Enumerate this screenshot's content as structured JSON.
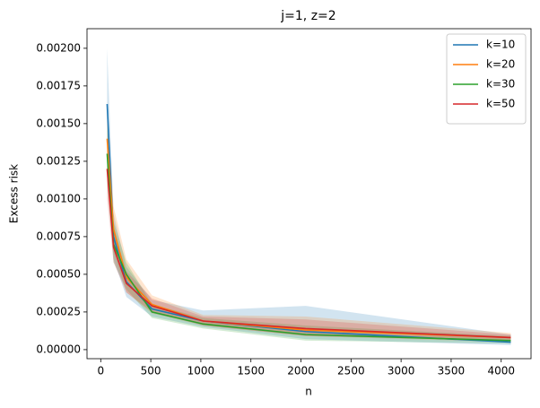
{
  "chart_data": {
    "type": "line",
    "title": "j=1, z=2",
    "x_label": "n",
    "y_label": "Excess risk",
    "x": [
      64,
      128,
      256,
      512,
      1024,
      2048,
      4096
    ],
    "series": [
      {
        "name": "k=10",
        "color": "#1f77b4",
        "values": [
          0.00163,
          0.00075,
          0.00045,
          0.00027,
          0.00019,
          0.00012,
          5e-05
        ],
        "upper": [
          0.002,
          0.0009,
          0.00055,
          0.00033,
          0.00026,
          0.00029,
          0.0001
        ],
        "lower": [
          0.0012,
          0.0006,
          0.00035,
          0.00022,
          0.00015,
          7e-05,
          3e-05
        ]
      },
      {
        "name": "k=20",
        "color": "#ff7f0e",
        "values": [
          0.0014,
          0.0008,
          0.00048,
          0.0003,
          0.00019,
          0.00013,
          8e-05
        ],
        "upper": [
          0.00165,
          0.00095,
          0.0006,
          0.00036,
          0.00023,
          0.00022,
          0.00011
        ],
        "lower": [
          0.00115,
          0.00065,
          0.00038,
          0.00024,
          0.00016,
          9e-05,
          5e-05
        ]
      },
      {
        "name": "k=30",
        "color": "#2ca02c",
        "values": [
          0.0013,
          0.0007,
          0.0005,
          0.00025,
          0.00017,
          0.0001,
          6e-05
        ],
        "upper": [
          0.0015,
          0.00085,
          0.00058,
          0.0003,
          0.00021,
          0.00016,
          9e-05
        ],
        "lower": [
          0.0011,
          0.00058,
          0.0004,
          0.00021,
          0.00014,
          6e-05,
          4e-05
        ]
      },
      {
        "name": "k=50",
        "color": "#d62728",
        "values": [
          0.0012,
          0.00068,
          0.00044,
          0.00029,
          0.00019,
          0.00014,
          8e-05
        ],
        "upper": [
          0.0014,
          0.0008,
          0.00052,
          0.00034,
          0.00022,
          0.0002,
          0.0001
        ],
        "lower": [
          0.001,
          0.00058,
          0.00038,
          0.00025,
          0.00016,
          9e-05,
          6e-05
        ]
      }
    ],
    "xlim": [
      -137,
      4298
    ],
    "xticks": [
      0,
      500,
      1000,
      1500,
      2000,
      2500,
      3000,
      3500,
      4000
    ],
    "ylim": [
      -6e-05,
      0.00213
    ],
    "yticks": [
      {
        "value": 0,
        "label": "0.00000"
      },
      {
        "value": 0.00025,
        "label": "0.00025"
      },
      {
        "value": 0.0005,
        "label": "0.00050"
      },
      {
        "value": 0.00075,
        "label": "0.00075"
      },
      {
        "value": 0.001,
        "label": "0.00100"
      },
      {
        "value": 0.00125,
        "label": "0.00125"
      },
      {
        "value": 0.0015,
        "label": "0.00150"
      },
      {
        "value": 0.00175,
        "label": "0.00175"
      },
      {
        "value": 0.002,
        "label": "0.00200"
      }
    ],
    "legend": "upper right",
    "band_opacity": 0.2
  }
}
